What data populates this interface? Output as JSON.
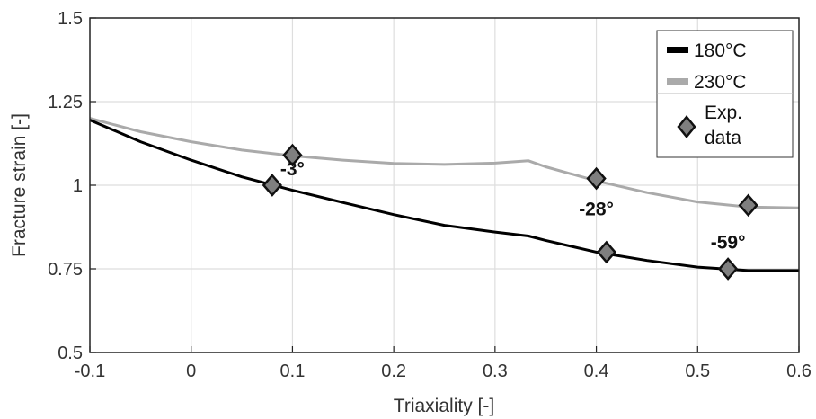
{
  "chart_data": {
    "type": "line",
    "title": "",
    "xlabel": "Triaxiality [-]",
    "ylabel": "Fracture strain [-]",
    "xlim": [
      -0.1,
      0.6
    ],
    "ylim": [
      0.5,
      1.5
    ],
    "xticks": [
      -0.1,
      0,
      0.1,
      0.2,
      0.3,
      0.4,
      0.5,
      0.6
    ],
    "xtick_labels": [
      "-0.1",
      "0",
      "0.1",
      "0.2",
      "0.3",
      "0.4",
      "0.5",
      "0.6"
    ],
    "yticks": [
      0.5,
      0.75,
      1,
      1.25,
      1.5
    ],
    "ytick_labels": [
      "0.5",
      "0.75",
      "1",
      "1.25",
      "1.5"
    ],
    "grid": true,
    "legend_position": "top-right",
    "series": [
      {
        "name": "180°C",
        "color": "#000000",
        "x": [
          -0.1,
          -0.05,
          0,
          0.05,
          0.1,
          0.15,
          0.2,
          0.25,
          0.3,
          0.333,
          0.35,
          0.4,
          0.45,
          0.5,
          0.55,
          0.6
        ],
        "y": [
          1.195,
          1.13,
          1.075,
          1.025,
          0.985,
          0.948,
          0.912,
          0.88,
          0.86,
          0.848,
          0.835,
          0.8,
          0.775,
          0.755,
          0.745,
          0.745
        ]
      },
      {
        "name": "230°C",
        "color": "#aaaaaa",
        "x": [
          -0.1,
          -0.05,
          0,
          0.05,
          0.1,
          0.15,
          0.2,
          0.25,
          0.3,
          0.333,
          0.35,
          0.4,
          0.45,
          0.5,
          0.55,
          0.6
        ],
        "y": [
          1.2,
          1.16,
          1.13,
          1.105,
          1.088,
          1.075,
          1.065,
          1.062,
          1.066,
          1.073,
          1.055,
          1.013,
          0.978,
          0.95,
          0.935,
          0.932
        ]
      }
    ],
    "experimental": {
      "name": "Exp. data",
      "legend_label_lines": [
        "Exp.",
        "data"
      ],
      "color": "#7f7f7f",
      "points": [
        {
          "x": 0.08,
          "y": 1.0
        },
        {
          "x": 0.1,
          "y": 1.09
        },
        {
          "x": 0.4,
          "y": 1.02
        },
        {
          "x": 0.41,
          "y": 0.8
        },
        {
          "x": 0.53,
          "y": 0.75
        },
        {
          "x": 0.55,
          "y": 0.94
        }
      ]
    },
    "annotations": [
      {
        "text": "-3°",
        "x": 0.1,
        "y": 1.03
      },
      {
        "text": "-28°",
        "x": 0.4,
        "y": 0.91
      },
      {
        "text": "-59°",
        "x": 0.53,
        "y": 0.81
      }
    ]
  }
}
